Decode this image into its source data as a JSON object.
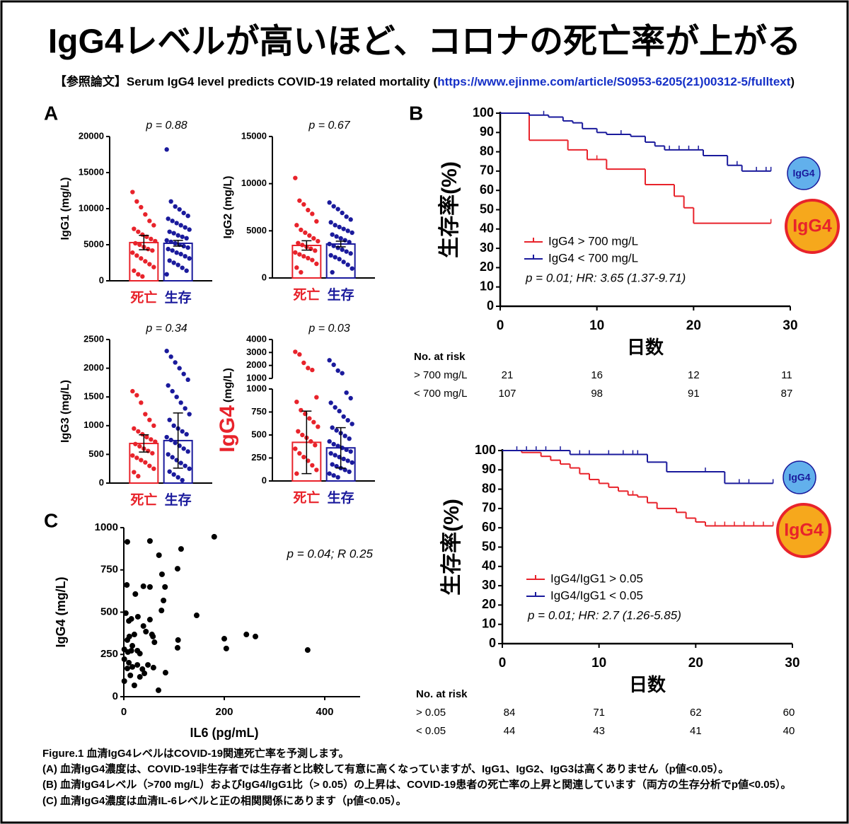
{
  "title": "IgG4レベルが高いほど、コロナの死亡率が上がる",
  "reference": {
    "prefix": "【参照論文】Serum IgG4 level predicts COVID-19 related mortality (",
    "url": "https://www.ejinme.com/article/S0953-6205(21)00312-5/fulltext",
    "suffix": ")"
  },
  "panel_labels": [
    "A",
    "B",
    "C"
  ],
  "chart_data": [
    {
      "type": "bar",
      "ylabel": "IgG1 (mg/L)",
      "pvalue": "p = 0.88",
      "categories": [
        "死亡",
        "生存"
      ],
      "colors": [
        "#e8232b",
        "#1a1a9c"
      ],
      "values": [
        5300,
        5200
      ],
      "errors": [
        1000,
        400
      ],
      "points": [
        [
          12300,
          11000,
          10200,
          9200,
          8300,
          7700,
          7200,
          6800,
          6400,
          6100,
          5800,
          5500,
          5200,
          5000,
          4700,
          4400,
          4200,
          3900,
          3500,
          3100,
          2700,
          2300,
          1900,
          1400,
          900,
          600
        ],
        [
          18200,
          11000,
          10300,
          9900,
          9400,
          9000,
          8600,
          8300,
          8000,
          7700,
          7400,
          7100,
          6800,
          6600,
          6300,
          6100,
          5900,
          5600,
          5400,
          5200,
          5000,
          4800,
          4600,
          4400,
          4200,
          3900,
          3700,
          3400,
          3100,
          2800,
          2500,
          2200,
          1800,
          1400,
          900
        ]
      ],
      "ylim": [
        0,
        20000
      ],
      "yticks": [
        0,
        5000,
        10000,
        15000,
        20000
      ]
    },
    {
      "type": "bar",
      "ylabel": "IgG2 (mg/L)",
      "pvalue": "p = 0.67",
      "categories": [
        "死亡",
        "生存"
      ],
      "colors": [
        "#e8232b",
        "#1a1a9c"
      ],
      "values": [
        3450,
        3600
      ],
      "errors": [
        500,
        300
      ],
      "points": [
        [
          10600,
          8200,
          7800,
          7200,
          6800,
          6000,
          5600,
          5100,
          4800,
          4500,
          4200,
          3900,
          3700,
          3500,
          3300,
          3100,
          2900,
          2700,
          2500,
          2300,
          2100,
          1900,
          1500,
          1100,
          600
        ],
        [
          8000,
          7600,
          7300,
          6900,
          6500,
          6200,
          5900,
          5600,
          5400,
          5200,
          5000,
          4800,
          4600,
          4400,
          4200,
          4000,
          3800,
          3600,
          3400,
          3200,
          3000,
          2800,
          2600,
          2400,
          2200,
          2000,
          1700,
          1400,
          1000,
          600
        ]
      ],
      "ylim": [
        0,
        15000
      ],
      "yticks": [
        0,
        5000,
        10000,
        15000
      ]
    },
    {
      "type": "bar",
      "ylabel": "IgG3 (mg/L)",
      "pvalue": "p = 0.34",
      "categories": [
        "死亡",
        "生存"
      ],
      "colors": [
        "#e8232b",
        "#1a1a9c"
      ],
      "values": [
        690,
        740
      ],
      "errors": [
        150,
        480
      ],
      "points": [
        [
          1600,
          1530,
          1400,
          1200,
          1100,
          1000,
          950,
          900,
          850,
          800,
          760,
          720,
          680,
          640,
          600,
          560,
          520,
          480,
          440,
          400,
          360,
          300,
          250,
          190,
          120
        ],
        [
          2300,
          2200,
          2100,
          2000,
          1900,
          1800,
          1700,
          1600,
          1500,
          1400,
          1300,
          1200,
          1100,
          1000,
          950,
          900,
          850,
          800,
          750,
          700,
          650,
          600,
          550,
          500,
          450,
          400,
          350,
          300,
          250,
          200,
          150,
          100,
          50
        ]
      ],
      "ylim": [
        0,
        2500
      ],
      "yticks": [
        0,
        500,
        1000,
        1500,
        2000,
        2500
      ]
    },
    {
      "type": "bar",
      "ylabel_highlight": "IgG4",
      "ylabel": "(mg/L)",
      "pvalue": "p = 0.03",
      "categories": [
        "死亡",
        "生存"
      ],
      "colors": [
        "#e8232b",
        "#1a1a9c"
      ],
      "values": [
        420,
        360
      ],
      "errors": [
        340,
        220
      ],
      "points": [
        [
          3050,
          2850,
          2200,
          1800,
          1650,
          910,
          860,
          770,
          730,
          680,
          640,
          590,
          540,
          500,
          470,
          430,
          390,
          350,
          300,
          260,
          220,
          170,
          120,
          80
        ],
        [
          2400,
          2050,
          1600,
          1400,
          960,
          900,
          850,
          800,
          760,
          700,
          660,
          620,
          580,
          550,
          520,
          490,
          460,
          430,
          400,
          380,
          360,
          340,
          320,
          300,
          280,
          260,
          240,
          220,
          200,
          180,
          160,
          140,
          120,
          100,
          80,
          60,
          40
        ]
      ],
      "ylim": [
        0,
        1000
      ],
      "yticks": [
        0,
        250,
        500,
        750,
        1000
      ],
      "ylim_upper": [
        1000,
        4000
      ],
      "yticks_upper": [
        1000,
        2000,
        3000,
        4000
      ]
    },
    {
      "type": "survival",
      "ylabel": "生存率(%)",
      "xlabel": "日数",
      "annotation": "p = 0.01; HR: 3.65 (1.37-9.71)",
      "end": 28,
      "xlim": [
        0,
        30
      ],
      "xticks": [
        0,
        10,
        20,
        30
      ],
      "ylim": [
        0,
        100
      ],
      "yticks": [
        0,
        10,
        20,
        30,
        40,
        50,
        60,
        70,
        80,
        90,
        100
      ],
      "series": [
        {
          "name": "IgG4 > 700 mg/L",
          "color": "#e8232b",
          "x": [
            0,
            3,
            7,
            9,
            11,
            15,
            18,
            19,
            20
          ],
          "values": [
            100,
            86,
            81,
            76,
            71,
            63,
            57,
            51,
            43
          ],
          "censored": [
            10,
            28
          ]
        },
        {
          "name": "IgG4 < 700 mg/L",
          "color": "#1a1a9c",
          "x": [
            0,
            3,
            5,
            6.5,
            7.5,
            8.5,
            10,
            11,
            13.5,
            15,
            16,
            17,
            21,
            23.5,
            25
          ],
          "values": [
            100,
            99,
            98,
            96,
            95,
            92,
            90,
            89,
            88,
            85,
            83,
            81,
            78,
            73,
            70
          ],
          "censored": [
            4.5,
            12.5,
            17.5,
            18.5,
            19.5,
            20.5,
            24.5,
            26.5,
            27.5,
            28
          ]
        }
      ],
      "badges": [
        "IgG4",
        "IgG4"
      ],
      "risk_table": {
        "title": "No. at risk",
        "rows": [
          {
            "label": "> 700 mg/L",
            "values": [
              21,
              16,
              12,
              11
            ]
          },
          {
            "label": "< 700 mg/L",
            "values": [
              107,
              98,
              91,
              87
            ]
          }
        ]
      }
    },
    {
      "type": "survival",
      "ylabel": "生存率(%)",
      "xlabel": "日数",
      "annotation": "p = 0.01; HR: 2.7 (1.26-5.85)",
      "end": 28,
      "xlim": [
        0,
        30
      ],
      "xticks": [
        0,
        10,
        20,
        30
      ],
      "ylim": [
        0,
        100
      ],
      "yticks": [
        0,
        10,
        20,
        30,
        40,
        50,
        60,
        70,
        80,
        90,
        100
      ],
      "series": [
        {
          "name": "IgG4/IgG1 > 0.05",
          "color": "#e8232b",
          "x": [
            0,
            2,
            4,
            5,
            6,
            7,
            8,
            9,
            10,
            11,
            12,
            13,
            14,
            15,
            16,
            18,
            19,
            20,
            21
          ],
          "values": [
            100,
            99,
            97,
            95,
            93,
            91,
            88,
            85,
            83,
            81,
            79,
            77,
            76,
            73,
            70,
            68,
            65,
            63,
            61
          ],
          "censored": [
            13.5,
            22,
            23,
            24,
            25,
            26,
            27,
            28
          ]
        },
        {
          "name": "IgG4/IgG1 < 0.05",
          "color": "#1a1a9c",
          "x": [
            0,
            7,
            15,
            17,
            23
          ],
          "values": [
            100,
            98,
            94,
            89,
            83
          ],
          "censored": [
            1.5,
            2.5,
            3.5,
            4.5,
            6,
            8,
            9,
            11,
            12.5,
            13.5,
            14,
            21,
            24.5,
            25.5,
            28
          ]
        }
      ],
      "badges": [
        "IgG4",
        "IgG4"
      ],
      "risk_table": {
        "title": "No. at risk",
        "rows": [
          {
            "label": "> 0.05",
            "values": [
              84,
              71,
              62,
              60
            ]
          },
          {
            "label": "< 0.05",
            "values": [
              44,
              43,
              41,
              40
            ]
          }
        ]
      }
    },
    {
      "type": "scatter",
      "ylabel": "IgG4 (mg/L)",
      "xlabel": "IL6 (pg/mL)",
      "annotation": "p = 0.04; R 0.25",
      "color": "#000000",
      "xlim": [
        0,
        400
      ],
      "xticks": [
        0,
        200,
        400
      ],
      "ylim": [
        0,
        1000
      ],
      "yticks": [
        0,
        250,
        500,
        750,
        1000
      ],
      "x": [
        7,
        180,
        52,
        114,
        107,
        70,
        76,
        39,
        52,
        82,
        6,
        23,
        4,
        15,
        10,
        28,
        39,
        79,
        75,
        145,
        52,
        44,
        56,
        21,
        11,
        7,
        17,
        1,
        8,
        15,
        27,
        32,
        58,
        61,
        108,
        107,
        200,
        204,
        244,
        262,
        366,
        1,
        10,
        17,
        27,
        37,
        48,
        41,
        32,
        13,
        21,
        69,
        83,
        59,
        1,
        7
      ],
      "values": [
        916,
        946,
        921,
        874,
        757,
        837,
        724,
        653,
        649,
        649,
        661,
        607,
        494,
        460,
        448,
        473,
        418,
        569,
        510,
        481,
        456,
        385,
        368,
        368,
        356,
        335,
        301,
        280,
        264,
        272,
        272,
        255,
        356,
        322,
        335,
        289,
        343,
        285,
        368,
        356,
        276,
        222,
        201,
        176,
        188,
        163,
        188,
        138,
        117,
        126,
        67,
        38,
        142,
        172,
        92,
        167
      ]
    }
  ],
  "caption": [
    "Figure.1 血清IgG4レベルはCOVID-19関連死亡率を予測します。",
    "(A)  血清IgG4濃度は、COVID-19非生存者では生存者と比較して有意に高くなっていますが、IgG1、IgG2、IgG3は高くありません（p値<0.05）。",
    "(B)  血清IgG4レベル（>700 mg/L）およびIgG4/IgG1比（> 0.05）の上昇は、COVID-19患者の死亡率の上昇と関連しています（両方の生存分析でp値<0.05）。",
    "(C)  血清IgG4濃度は血清IL-6レベルと正の相関関係にあります（p値<0.05）。"
  ]
}
